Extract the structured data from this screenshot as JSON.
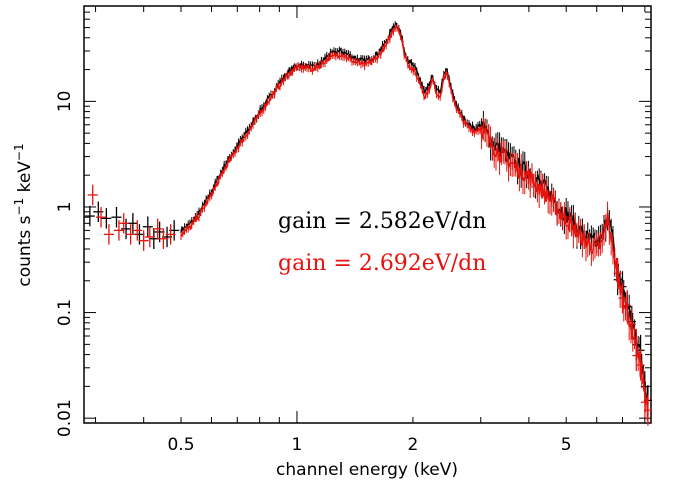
{
  "chart_data": {
    "type": "line",
    "xscale": "log",
    "yscale": "log",
    "xlim": [
      0.28,
      8.3
    ],
    "ylim": [
      0.009,
      80
    ],
    "xlabel": "channel energy (keV)",
    "ylabel_main": "counts s",
    "ylabel_exp1": "−1",
    "ylabel_unit": " keV",
    "ylabel_exp2": "−1",
    "x_ticks": [
      {
        "value": 0.5,
        "label": "0.5"
      },
      {
        "value": 1,
        "label": "1"
      },
      {
        "value": 2,
        "label": "2"
      },
      {
        "value": 5,
        "label": "5"
      }
    ],
    "y_ticks": [
      {
        "value": 0.01,
        "label": "0.01"
      },
      {
        "value": 0.1,
        "label": "0.1"
      },
      {
        "value": 1,
        "label": "1"
      },
      {
        "value": 10,
        "label": "10"
      }
    ],
    "annotations": [
      {
        "text": "gain = 2.582eV/dn",
        "color": "#000000"
      },
      {
        "text": "gain = 2.692eV/dn",
        "color": "#e8120c"
      }
    ],
    "series": [
      {
        "name": "gain = 2.582eV/dn",
        "color": "#000000",
        "x": [
          0.29,
          0.31,
          0.33,
          0.35,
          0.37,
          0.39,
          0.41,
          0.43,
          0.45,
          0.47,
          0.5,
          0.53,
          0.56,
          0.6,
          0.65,
          0.7,
          0.75,
          0.8,
          0.85,
          0.9,
          0.95,
          1.0,
          1.05,
          1.1,
          1.15,
          1.2,
          1.25,
          1.3,
          1.35,
          1.4,
          1.5,
          1.6,
          1.7,
          1.75,
          1.8,
          1.84,
          1.87,
          1.9,
          1.95,
          2.0,
          2.05,
          2.1,
          2.15,
          2.2,
          2.25,
          2.3,
          2.35,
          2.4,
          2.45,
          2.5,
          2.6,
          2.7,
          2.8,
          2.9,
          3.0,
          3.1,
          3.2,
          3.4,
          3.6,
          3.8,
          4.0,
          4.2,
          4.5,
          4.8,
          5.1,
          5.4,
          5.7,
          6.0,
          6.2,
          6.4,
          6.6,
          6.7,
          6.9,
          7.1,
          7.3,
          7.5,
          7.7,
          7.9,
          8.1
        ],
        "y": [
          0.85,
          0.78,
          0.8,
          0.72,
          0.68,
          0.66,
          0.62,
          0.58,
          0.55,
          0.55,
          0.6,
          0.7,
          0.9,
          1.4,
          2.5,
          3.8,
          5.5,
          8,
          11,
          15,
          19,
          22,
          22,
          21,
          23,
          27,
          29,
          30,
          28,
          26,
          24,
          27,
          36,
          45,
          55,
          50,
          40,
          30,
          24,
          22,
          19,
          15,
          12,
          14,
          17,
          13,
          12,
          17,
          20,
          14,
          9,
          7,
          6,
          5.5,
          6,
          5.2,
          4.2,
          3.4,
          2.8,
          2.4,
          2.2,
          1.8,
          1.4,
          1.0,
          0.8,
          0.6,
          0.5,
          0.45,
          0.5,
          0.9,
          0.5,
          0.3,
          0.2,
          0.14,
          0.1,
          0.07,
          0.05,
          0.03,
          0.016
        ]
      },
      {
        "name": "gain = 2.692eV/dn",
        "color": "#e8120c",
        "x": [
          0.29,
          0.31,
          0.33,
          0.35,
          0.37,
          0.39,
          0.41,
          0.43,
          0.45,
          0.47,
          0.5,
          0.53,
          0.56,
          0.6,
          0.65,
          0.7,
          0.75,
          0.8,
          0.85,
          0.9,
          0.95,
          1.0,
          1.05,
          1.1,
          1.15,
          1.2,
          1.25,
          1.3,
          1.35,
          1.4,
          1.5,
          1.6,
          1.7,
          1.75,
          1.8,
          1.84,
          1.87,
          1.9,
          1.95,
          2.0,
          2.05,
          2.1,
          2.15,
          2.2,
          2.25,
          2.3,
          2.35,
          2.4,
          2.45,
          2.5,
          2.6,
          2.7,
          2.8,
          2.9,
          3.0,
          3.1,
          3.2,
          3.4,
          3.6,
          3.8,
          4.0,
          4.2,
          4.5,
          4.8,
          5.1,
          5.4,
          5.7,
          6.0,
          6.2,
          6.4,
          6.6,
          6.7,
          6.9,
          7.1,
          7.3,
          7.5,
          7.7,
          7.9,
          8.1
        ],
        "y": [
          0.75,
          0.7,
          0.68,
          0.65,
          0.62,
          0.6,
          0.56,
          0.52,
          0.5,
          0.5,
          0.55,
          0.65,
          0.85,
          1.3,
          2.3,
          3.6,
          5.2,
          7.6,
          10.5,
          14,
          18,
          21,
          21,
          20,
          22,
          25,
          27,
          28,
          26,
          24,
          22,
          25,
          33,
          42,
          52,
          48,
          38,
          28,
          22,
          20,
          17,
          14,
          11,
          13,
          16,
          12,
          11,
          16,
          19,
          13,
          8.5,
          6.5,
          5.6,
          5.2,
          5.6,
          4.8,
          3.9,
          3.1,
          2.6,
          2.2,
          2.0,
          1.6,
          1.25,
          0.9,
          0.7,
          0.55,
          0.45,
          0.4,
          0.45,
          0.8,
          0.45,
          0.27,
          0.18,
          0.12,
          0.085,
          0.06,
          0.04,
          0.025,
          0.012
        ]
      }
    ],
    "low_energy_crosses": {
      "black": {
        "x": [
          0.29,
          0.305,
          0.32,
          0.34,
          0.36,
          0.375,
          0.39,
          0.41,
          0.425,
          0.44,
          0.46,
          0.48
        ],
        "y": [
          0.82,
          0.9,
          0.78,
          0.8,
          0.62,
          0.7,
          0.55,
          0.65,
          0.5,
          0.58,
          0.52,
          0.6
        ]
      },
      "red": {
        "x": [
          0.295,
          0.31,
          0.325,
          0.345,
          0.355,
          0.37,
          0.385,
          0.4,
          0.415,
          0.435,
          0.45,
          0.47
        ],
        "y": [
          1.3,
          0.8,
          0.55,
          0.6,
          0.7,
          0.55,
          0.6,
          0.48,
          0.52,
          0.62,
          0.5,
          0.55
        ]
      }
    }
  }
}
